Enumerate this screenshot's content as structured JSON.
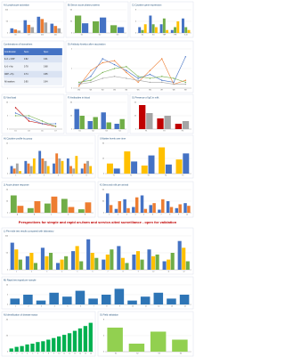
{
  "heading": "Perspectives for simple and rapid on-farm and service-sited surveillance - open for validation",
  "table": {
    "title": "Combinations of biomarkers",
    "rows": [
      [
        "Combination",
        "Sens",
        "Spec"
      ],
      [
        "IL-6 + CRP",
        "0.82",
        "0.91"
      ],
      [
        "IL-6 + Hp",
        "0.78",
        "0.88"
      ],
      [
        "CRP + Hp",
        "0.74",
        "0.85"
      ],
      [
        "All markers",
        "0.90",
        "0.94"
      ]
    ]
  },
  "chart_data": [
    {
      "type": "bar",
      "title": "A) Lymphocyte activation",
      "categories": [
        "D0",
        "D7",
        "D14",
        "D21"
      ],
      "ylim": [
        0,
        100
      ],
      "yticks": [
        0,
        50,
        100
      ],
      "series": [
        {
          "color": "#4472c4",
          "values": [
            20,
            55,
            70,
            40
          ]
        },
        {
          "color": "#ed7d31",
          "values": [
            15,
            35,
            60,
            30
          ]
        },
        {
          "color": "#a5a5a5",
          "values": [
            10,
            25,
            45,
            20
          ]
        }
      ]
    },
    {
      "type": "bar",
      "title": "B) Serum acute phase proteins",
      "categories": [
        "G1",
        "G2",
        "G3"
      ],
      "ylim": [
        0,
        60
      ],
      "yticks": [
        0,
        30,
        60
      ],
      "series": [
        {
          "color": "#70ad47",
          "values": [
            45,
            30,
            20
          ]
        },
        {
          "color": "#4472c4",
          "values": [
            25,
            40,
            15
          ]
        }
      ]
    },
    {
      "type": "bar",
      "title": "C) Cytokine gene expression",
      "categories": [
        "IL1",
        "IL6",
        "TNF",
        "IFN",
        "IL10"
      ],
      "ylim": [
        0,
        8
      ],
      "yticks": [
        0,
        4,
        8
      ],
      "series": [
        {
          "color": "#4472c4",
          "values": [
            2,
            6,
            3,
            1,
            5
          ]
        },
        {
          "color": "#70ad47",
          "values": [
            1,
            3,
            5,
            2,
            2
          ]
        },
        {
          "color": "#ffc000",
          "values": [
            3,
            2,
            1,
            4,
            1
          ]
        }
      ]
    },
    {
      "type": "line",
      "title": "D) Antibody kinetics after vaccination",
      "categories": [
        "W0",
        "W1",
        "W2",
        "W3",
        "W4",
        "W5",
        "W6",
        "W7",
        "W8",
        "W9"
      ],
      "ylim": [
        0,
        2
      ],
      "yticks": [
        0,
        1,
        2
      ],
      "series": [
        {
          "color": "#4472c4",
          "values": [
            0.2,
            0.6,
            1.5,
            1.2,
            0.9,
            0.5,
            0.7,
            0.4,
            0.3,
            1.6
          ]
        },
        {
          "color": "#ed7d31",
          "values": [
            0.1,
            0.9,
            1.3,
            1.4,
            0.8,
            0.3,
            0.9,
            1.5,
            0.2,
            0.4
          ]
        },
        {
          "color": "#70ad47",
          "values": [
            0.3,
            0.4,
            0.8,
            1.0,
            1.1,
            0.6,
            0.5,
            0.6,
            0.5,
            0.3
          ]
        },
        {
          "color": "#a5a5a5",
          "values": [
            0.2,
            0.3,
            0.5,
            0.6,
            0.5,
            0.4,
            0.3,
            0.3,
            0.2,
            0.2
          ]
        }
      ]
    },
    {
      "type": "line",
      "title": "E) Viral load",
      "categories": [
        "D1",
        "D3",
        "D5",
        "D7"
      ],
      "ylim": [
        0,
        10
      ],
      "yticks": [
        0,
        5,
        10
      ],
      "series": [
        {
          "color": "#c00000",
          "values": [
            8,
            3,
            2,
            1
          ]
        },
        {
          "color": "#4472c4",
          "values": [
            6,
            4,
            2,
            2
          ]
        },
        {
          "color": "#70ad47",
          "values": [
            5,
            5,
            3,
            1
          ]
        }
      ]
    },
    {
      "type": "bar",
      "title": "F) Antibodies in blood",
      "categories": [
        "S1",
        "S2",
        "S3",
        "S4"
      ],
      "ylim": [
        0,
        40
      ],
      "yticks": [
        0,
        20,
        40
      ],
      "series": [
        {
          "color": "#4472c4",
          "values": [
            30,
            12,
            25,
            8
          ]
        },
        {
          "color": "#70ad47",
          "values": [
            20,
            18,
            10,
            15
          ]
        }
      ]
    },
    {
      "type": "bar",
      "title": "G) Presence of IgG in milk",
      "categories": [
        "P1",
        "P2",
        "P3"
      ],
      "ylim": [
        0,
        50
      ],
      "yticks": [
        0,
        25,
        50
      ],
      "series": [
        {
          "color": "#c00000",
          "values": [
            45,
            20,
            10
          ]
        },
        {
          "color": "#a5a5a5",
          "values": [
            30,
            25,
            15
          ]
        }
      ]
    },
    {
      "type": "bar",
      "title": "H) Cytokine profile by group",
      "categories": [
        "1",
        "2",
        "3",
        "4",
        "5",
        "6"
      ],
      "ylim": [
        0,
        12
      ],
      "yticks": [
        0,
        6,
        12
      ],
      "series": [
        {
          "color": "#4472c4",
          "values": [
            3,
            5,
            9,
            4,
            6,
            2
          ]
        },
        {
          "color": "#ed7d31",
          "values": [
            2,
            4,
            6,
            8,
            3,
            4
          ]
        },
        {
          "color": "#a5a5a5",
          "values": [
            4,
            3,
            5,
            6,
            2,
            5
          ]
        },
        {
          "color": "#ffc000",
          "values": [
            1,
            6,
            3,
            5,
            7,
            3
          ]
        }
      ]
    },
    {
      "type": "bar",
      "title": "I) Marker levels over time",
      "categories": [
        "T1",
        "T2",
        "T3",
        "T4",
        "T5"
      ],
      "ylim": [
        0,
        30
      ],
      "yticks": [
        0,
        15,
        30
      ],
      "series": [
        {
          "color": "#ffc000",
          "values": [
            10,
            22,
            8,
            26,
            14
          ]
        },
        {
          "color": "#4472c4",
          "values": [
            5,
            12,
            18,
            9,
            20
          ]
        }
      ]
    },
    {
      "type": "bar",
      "title": "J) Acute phase response",
      "categories": [
        "A",
        "B",
        "C",
        "D",
        "E"
      ],
      "ylim": [
        0,
        20
      ],
      "yticks": [
        0,
        10,
        20
      ],
      "series": [
        {
          "color": "#70ad47",
          "values": [
            15,
            4,
            8,
            12,
            3
          ]
        },
        {
          "color": "#ed7d31",
          "values": [
            6,
            10,
            14,
            5,
            9
          ]
        }
      ]
    },
    {
      "type": "bar",
      "title": "K) Sera and milk per animal",
      "categories": [
        "1",
        "2",
        "3",
        "4",
        "5",
        "6",
        "7",
        "8",
        "9",
        "10"
      ],
      "ylim": [
        0,
        60
      ],
      "yticks": [
        0,
        30,
        60
      ],
      "series": [
        {
          "color": "#4472c4",
          "values": [
            50,
            10,
            35,
            15,
            45,
            20,
            8,
            30,
            12,
            25
          ]
        },
        {
          "color": "#ed7d31",
          "values": [
            20,
            30,
            12,
            40,
            10,
            25,
            35,
            15,
            22,
            18
          ]
        }
      ]
    },
    {
      "type": "bar",
      "title": "L) Pen-side test results compared with laboratory",
      "categories": [
        "1",
        "2",
        "3",
        "4",
        "5",
        "6",
        "7",
        "8",
        "9",
        "10",
        "11",
        "12"
      ],
      "ylim": [
        0,
        100
      ],
      "yticks": [
        0,
        50,
        100
      ],
      "series": [
        {
          "color": "#4472c4",
          "values": [
            80,
            40,
            65,
            20,
            55,
            90,
            30,
            70,
            45,
            60,
            25,
            85
          ]
        },
        {
          "color": "#ffc000",
          "values": [
            60,
            50,
            40,
            30,
            70,
            50,
            45,
            35,
            55,
            40,
            30,
            65
          ]
        },
        {
          "color": "#70ad47",
          "values": [
            30,
            20,
            50,
            40,
            25,
            35,
            60,
            20,
            30,
            45,
            50,
            25
          ]
        }
      ]
    },
    {
      "type": "bar",
      "title": "M) Rapid test signal per sample",
      "categories": [
        "1",
        "2",
        "3",
        "4",
        "5",
        "6",
        "7",
        "8",
        "9",
        "10",
        "11",
        "12",
        "13",
        "14"
      ],
      "ylim": [
        0,
        10
      ],
      "yticks": [
        0,
        5,
        10
      ],
      "series": [
        {
          "color": "#2e75b6",
          "values": [
            3,
            5,
            2,
            6,
            4,
            7,
            3,
            5,
            8,
            2,
            4,
            6,
            3,
            5
          ]
        }
      ]
    },
    {
      "type": "bar",
      "title": "N) Identification of disease status",
      "categories": [
        "1",
        "2",
        "3",
        "4",
        "5",
        "6",
        "7",
        "8",
        "9",
        "10",
        "11",
        "12",
        "13",
        "14",
        "15",
        "16"
      ],
      "ylim": [
        0,
        40
      ],
      "yticks": [
        0,
        20,
        40
      ],
      "series": [
        {
          "color": "#00b050",
          "values": [
            4,
            6,
            7,
            9,
            10,
            12,
            13,
            15,
            17,
            19,
            21,
            23,
            26,
            29,
            32,
            36
          ]
        }
      ]
    },
    {
      "type": "bar",
      "title": "O) Field validation",
      "categories": [
        "S1",
        "S2",
        "S3",
        "S4"
      ],
      "ylim": [
        0,
        8
      ],
      "yticks": [
        0,
        4,
        8
      ],
      "series": [
        {
          "color": "#92d050",
          "values": [
            6,
            2,
            5,
            3
          ]
        }
      ]
    }
  ]
}
